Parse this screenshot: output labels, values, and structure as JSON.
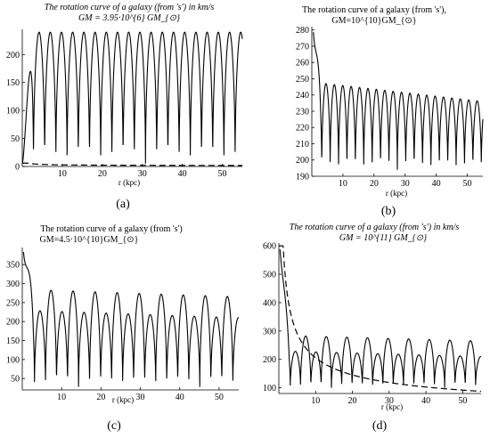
{
  "chart_data": [
    {
      "id": "a",
      "type": "line",
      "caption": "(a)",
      "title_line1": "The rotation curve of a  galaxy  (from 's') in km/s",
      "title_line2": "GM = 3.95·10^{6} GM_{⊙}",
      "xlabel": "r (kpc)",
      "xlim": [
        0,
        55
      ],
      "ylim": [
        0,
        245
      ],
      "xticks": [
        10,
        20,
        30,
        40,
        50
      ],
      "yticks": [
        0,
        50,
        100,
        150,
        200
      ],
      "x_tick_labels": [
        "10",
        "20",
        "30",
        "40",
        "50"
      ],
      "y_tick_labels": [
        "0",
        "50",
        "100",
        "150",
        "200"
      ],
      "series": [
        {
          "style": "solid",
          "kind": "oscillating",
          "lows": 5,
          "highs": 240,
          "period": 2.8,
          "start_value": 5,
          "start_x": 0
        },
        {
          "style": "dashed",
          "kind": "keplerian",
          "amplitude": 6,
          "floor": 1
        }
      ]
    },
    {
      "id": "b",
      "type": "line",
      "caption": "(b)",
      "title_line1": "The rotation curve of a  galaxy  (from 's'),",
      "title_line2": "GM=10^{10}GM_{⊙}",
      "xlabel": "r (kpc)",
      "xlim": [
        0,
        55
      ],
      "ylim": [
        190,
        282
      ],
      "xticks": [
        10,
        20,
        30,
        40,
        50
      ],
      "yticks": [
        190,
        200,
        210,
        220,
        230,
        240,
        250,
        260,
        270,
        280
      ],
      "x_tick_labels": [
        "10",
        "20",
        "30",
        "40",
        "50"
      ],
      "y_tick_labels": [
        "190",
        "200",
        "210",
        "220",
        "230",
        "240",
        "250",
        "260",
        "270",
        "280"
      ],
      "series": [
        {
          "style": "solid",
          "kind": "oscillating",
          "lows": 194,
          "highs_start": 248,
          "highs_end": 236,
          "period": 2.7,
          "start_value": 262,
          "start_x": 0.5,
          "first_peak": 279
        }
      ]
    },
    {
      "id": "c",
      "type": "line",
      "caption": "(c)",
      "title_line1": "The rotation curve of a  galaxy  (from 's')",
      "title_line2": "GM=4.5·10^{10}GM_{⊙}",
      "xlabel": "r (kpc)",
      "xlim": [
        0,
        55
      ],
      "ylim": [
        20,
        395
      ],
      "xticks": [
        10,
        20,
        30,
        40,
        50
      ],
      "yticks": [
        50,
        100,
        150,
        200,
        250,
        300,
        350
      ],
      "x_tick_labels": [
        "10",
        "20",
        "30",
        "40",
        "50"
      ],
      "y_tick_labels": [
        "50",
        "100",
        "150",
        "200",
        "250",
        "300",
        "350"
      ],
      "series": [
        {
          "style": "solid",
          "kind": "oscillating-alt",
          "lows": 28,
          "highs_a": 265,
          "highs_b": 210,
          "period": 2.8,
          "start_value": 385,
          "start_x": 0.3
        }
      ]
    },
    {
      "id": "d",
      "type": "line",
      "caption": "(d)",
      "title_line1": "The rotation curve of a  galaxy  (from 's') in km/s",
      "title_line2": "GM = 10^{11} GM_{⊙}",
      "xlabel": "r (kpc)",
      "xlim": [
        0,
        55
      ],
      "ylim": [
        80,
        610
      ],
      "xticks": [
        10,
        20,
        30,
        40,
        50
      ],
      "yticks": [
        100,
        200,
        300,
        400,
        500,
        600
      ],
      "x_tick_labels": [
        "10",
        "20",
        "30",
        "40",
        "50"
      ],
      "y_tick_labels": [
        "100",
        "200",
        "300",
        "400",
        "500",
        "600"
      ],
      "series": [
        {
          "style": "solid",
          "kind": "oscillating-alt",
          "lows": 100,
          "highs_a": 265,
          "highs_b": 210,
          "period": 2.8,
          "start_value": 590,
          "start_x": 0.3
        },
        {
          "style": "dashed",
          "kind": "keplerian",
          "amplitude": 650,
          "floor": 0
        }
      ]
    }
  ]
}
